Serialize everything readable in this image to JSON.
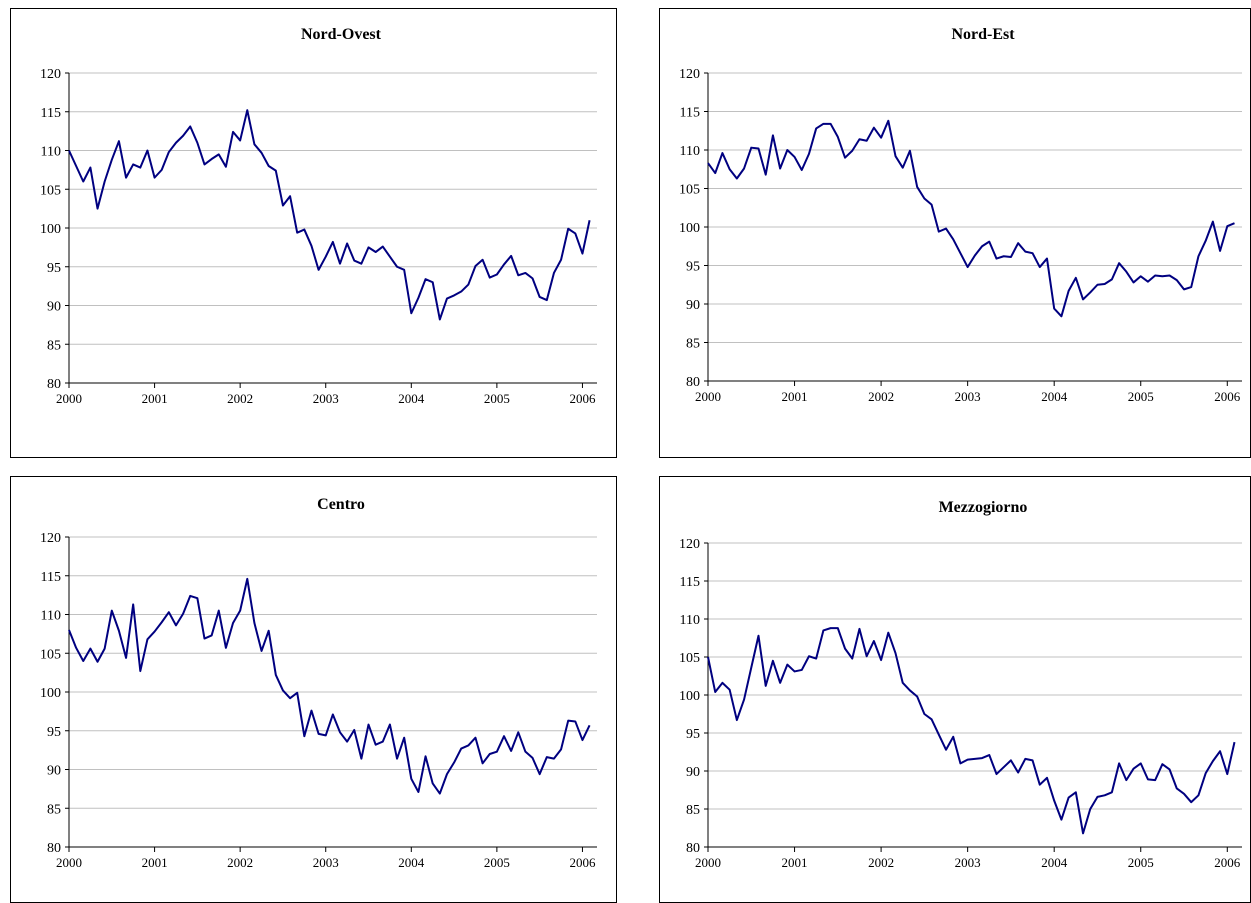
{
  "chart_data": [
    {
      "type": "line",
      "title": "Nord-Ovest",
      "xlabel": "",
      "ylabel": "",
      "ylim": [
        80,
        120
      ],
      "yticks": [
        80,
        85,
        90,
        95,
        100,
        105,
        110,
        115,
        120
      ],
      "xlim": [
        2000,
        2006.17
      ],
      "xticks": [
        "2000",
        "2001",
        "2002",
        "2003",
        "2004",
        "2005",
        "2006"
      ],
      "grid": true,
      "legend": "none",
      "line_color": "#000080",
      "series": [
        {
          "start": 2000,
          "step": "month",
          "values": [
            110.0,
            108.0,
            106.0,
            107.8,
            102.5,
            106.0,
            108.8,
            111.2,
            106.5,
            108.2,
            107.8,
            110.0,
            106.5,
            107.5,
            109.8,
            111.0,
            111.9,
            113.1,
            111.0,
            108.2,
            108.9,
            109.5,
            107.9,
            112.4,
            111.3,
            115.2,
            110.8,
            109.7,
            108.0,
            107.4,
            102.9,
            104.1,
            99.4,
            99.8,
            97.7,
            94.6,
            96.3,
            98.2,
            95.4,
            98.0,
            95.8,
            95.4,
            97.5,
            96.9,
            97.6,
            96.3,
            95.0,
            94.6,
            89.0,
            91.0,
            93.4,
            93.0,
            88.2,
            90.9,
            91.3,
            91.8,
            92.7,
            95.1,
            95.9,
            93.6,
            94.0,
            95.3,
            96.4,
            93.9,
            94.2,
            93.5,
            91.1,
            90.7,
            94.2,
            95.9,
            99.9,
            99.3,
            96.7,
            101.0
          ]
        }
      ]
    },
    {
      "type": "line",
      "title": "Nord-Est",
      "xlabel": "",
      "ylabel": "",
      "ylim": [
        80,
        120
      ],
      "yticks": [
        80,
        85,
        90,
        95,
        100,
        105,
        110,
        115,
        120
      ],
      "xlim": [
        2000,
        2006.17
      ],
      "xticks": [
        "2000",
        "2001",
        "2002",
        "2003",
        "2004",
        "2005",
        "2006"
      ],
      "grid": true,
      "legend": "none",
      "line_color": "#000080",
      "series": [
        {
          "start": 2000,
          "step": "month",
          "values": [
            108.3,
            107.0,
            109.6,
            107.5,
            106.3,
            107.6,
            110.3,
            110.2,
            106.8,
            111.9,
            107.6,
            110.0,
            109.1,
            107.4,
            109.5,
            112.8,
            113.4,
            113.4,
            111.7,
            109.0,
            109.9,
            111.4,
            111.2,
            112.9,
            111.6,
            113.8,
            109.2,
            107.7,
            109.9,
            105.2,
            103.7,
            102.9,
            99.4,
            99.8,
            98.4,
            96.6,
            94.8,
            96.3,
            97.5,
            98.1,
            95.9,
            96.2,
            96.1,
            97.9,
            96.8,
            96.6,
            94.8,
            95.9,
            89.4,
            88.4,
            91.7,
            93.4,
            90.6,
            91.5,
            92.5,
            92.6,
            93.2,
            95.3,
            94.2,
            92.8,
            93.6,
            92.9,
            93.7,
            93.6,
            93.7,
            93.1,
            91.9,
            92.2,
            96.2,
            98.2,
            100.7,
            96.9,
            100.1,
            100.5
          ]
        }
      ]
    },
    {
      "type": "line",
      "title": "Centro",
      "xlabel": "",
      "ylabel": "",
      "ylim": [
        80,
        120
      ],
      "yticks": [
        80,
        85,
        90,
        95,
        100,
        105,
        110,
        115,
        120
      ],
      "xlim": [
        2000,
        2006.17
      ],
      "xticks": [
        "2000",
        "2001",
        "2002",
        "2003",
        "2004",
        "2005",
        "2006"
      ],
      "grid": true,
      "legend": "none",
      "line_color": "#000080",
      "series": [
        {
          "start": 2000,
          "step": "month",
          "values": [
            108.0,
            105.7,
            104.0,
            105.6,
            103.9,
            105.6,
            110.5,
            107.9,
            104.4,
            111.3,
            102.7,
            106.8,
            107.8,
            109.0,
            110.3,
            108.6,
            110.1,
            112.4,
            112.1,
            106.9,
            107.3,
            110.5,
            105.7,
            108.9,
            110.5,
            114.6,
            108.9,
            105.3,
            107.9,
            102.2,
            100.2,
            99.2,
            99.9,
            94.3,
            97.6,
            94.6,
            94.4,
            97.1,
            94.8,
            93.6,
            95.1,
            91.4,
            95.8,
            93.2,
            93.6,
            95.8,
            91.4,
            94.1,
            88.8,
            87.1,
            91.7,
            88.2,
            86.9,
            89.4,
            90.9,
            92.7,
            93.1,
            94.1,
            90.8,
            92.0,
            92.3,
            94.3,
            92.4,
            94.8,
            92.3,
            91.5,
            89.4,
            91.6,
            91.4,
            92.6,
            96.3,
            96.2,
            93.8,
            95.7
          ]
        }
      ]
    },
    {
      "type": "line",
      "title": "Mezzogiorno",
      "xlabel": "",
      "ylabel": "",
      "ylim": [
        80,
        120
      ],
      "yticks": [
        80,
        85,
        90,
        95,
        100,
        105,
        110,
        115,
        120
      ],
      "xlim": [
        2000,
        2006.17
      ],
      "xticks": [
        "2000",
        "2001",
        "2002",
        "2003",
        "2004",
        "2005",
        "2006"
      ],
      "grid": true,
      "legend": "none",
      "line_color": "#000080",
      "series": [
        {
          "start": 2000,
          "step": "month",
          "values": [
            105.0,
            100.4,
            101.6,
            100.7,
            96.7,
            99.4,
            103.6,
            107.8,
            101.2,
            104.5,
            101.6,
            104.0,
            103.1,
            103.3,
            105.1,
            104.8,
            108.5,
            108.8,
            108.8,
            106.1,
            104.8,
            108.7,
            105.1,
            107.1,
            104.6,
            108.2,
            105.5,
            101.6,
            100.6,
            99.8,
            97.5,
            96.8,
            94.8,
            92.8,
            94.5,
            91.0,
            91.5,
            91.6,
            91.7,
            92.1,
            89.6,
            90.5,
            91.4,
            89.8,
            91.6,
            91.4,
            88.2,
            89.1,
            86.1,
            83.6,
            86.5,
            87.2,
            81.8,
            85.0,
            86.6,
            86.8,
            87.2,
            91.0,
            88.8,
            90.3,
            91.0,
            88.9,
            88.8,
            90.9,
            90.2,
            87.7,
            87.0,
            85.9,
            86.8,
            89.7,
            91.3,
            92.6,
            89.6,
            93.8
          ]
        }
      ]
    }
  ]
}
